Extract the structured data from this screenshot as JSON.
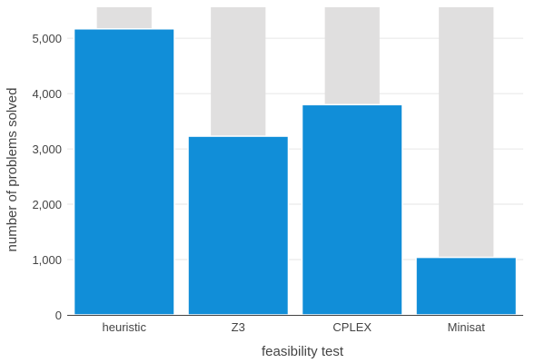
{
  "chart_data": {
    "type": "bar",
    "title": "",
    "xlabel": "feasibility test",
    "ylabel": "number of problems solved",
    "categories": [
      "heuristic",
      "Z3",
      "CPLEX",
      "Minisat"
    ],
    "values": [
      5170,
      3230,
      3800,
      1040
    ],
    "total": 5560,
    "ylim": [
      0,
      5560
    ],
    "yticks": [
      0,
      1000,
      2000,
      3000,
      4000,
      5000
    ],
    "ytick_labels": [
      "0",
      "1,000",
      "2,000",
      "3,000",
      "4,000",
      "5,000"
    ],
    "grid": true,
    "legend": "none",
    "colors": {
      "bar": "#118ed8",
      "background_bar": "#e0dfdf",
      "grid": "#e6e6e6",
      "axis": "#444444"
    }
  }
}
